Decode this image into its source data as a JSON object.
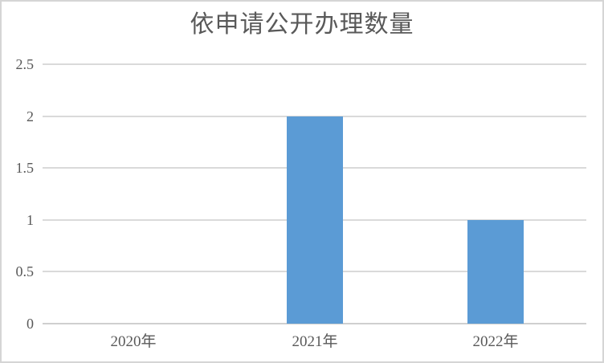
{
  "chart_data": {
    "type": "bar",
    "title": "依申请公开办理数量",
    "categories": [
      "2020年",
      "2021年",
      "2022年"
    ],
    "values": [
      0,
      2,
      1
    ],
    "xlabel": "",
    "ylabel": "",
    "ylim": [
      0,
      2.5
    ],
    "yticks": [
      0,
      0.5,
      1,
      1.5,
      2,
      2.5
    ],
    "grid": true,
    "legend_position": "none",
    "colors": {
      "bar": "#5B9BD5",
      "gridline": "#DADADA",
      "axis_line": "#CFCFCF",
      "text": "#595959",
      "background": "#FFFFFF",
      "frame_border": "#D5D5D5"
    }
  }
}
